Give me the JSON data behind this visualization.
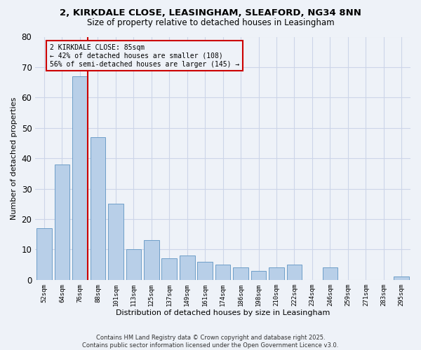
{
  "title_line1": "2, KIRKDALE CLOSE, LEASINGHAM, SLEAFORD, NG34 8NN",
  "title_line2": "Size of property relative to detached houses in Leasingham",
  "xlabel": "Distribution of detached houses by size in Leasingham",
  "ylabel": "Number of detached properties",
  "categories": [
    "52sqm",
    "64sqm",
    "76sqm",
    "88sqm",
    "101sqm",
    "113sqm",
    "125sqm",
    "137sqm",
    "149sqm",
    "161sqm",
    "174sqm",
    "186sqm",
    "198sqm",
    "210sqm",
    "222sqm",
    "234sqm",
    "246sqm",
    "259sqm",
    "271sqm",
    "283sqm",
    "295sqm"
  ],
  "values": [
    17,
    38,
    67,
    47,
    25,
    10,
    13,
    7,
    8,
    6,
    5,
    4,
    3,
    4,
    5,
    0,
    4,
    0,
    0,
    0,
    1
  ],
  "bar_color": "#b8cfe8",
  "bar_edge_color": "#6e9ec8",
  "vline_color": "#cc0000",
  "annotation_text": "2 KIRKDALE CLOSE: 85sqm\n← 42% of detached houses are smaller (108)\n56% of semi-detached houses are larger (145) →",
  "ylim": [
    0,
    80
  ],
  "yticks": [
    0,
    10,
    20,
    30,
    40,
    50,
    60,
    70,
    80
  ],
  "grid_color": "#ccd5e8",
  "background_color": "#eef2f8",
  "footer_line1": "Contains HM Land Registry data © Crown copyright and database right 2025.",
  "footer_line2": "Contains public sector information licensed under the Open Government Licence v3.0."
}
